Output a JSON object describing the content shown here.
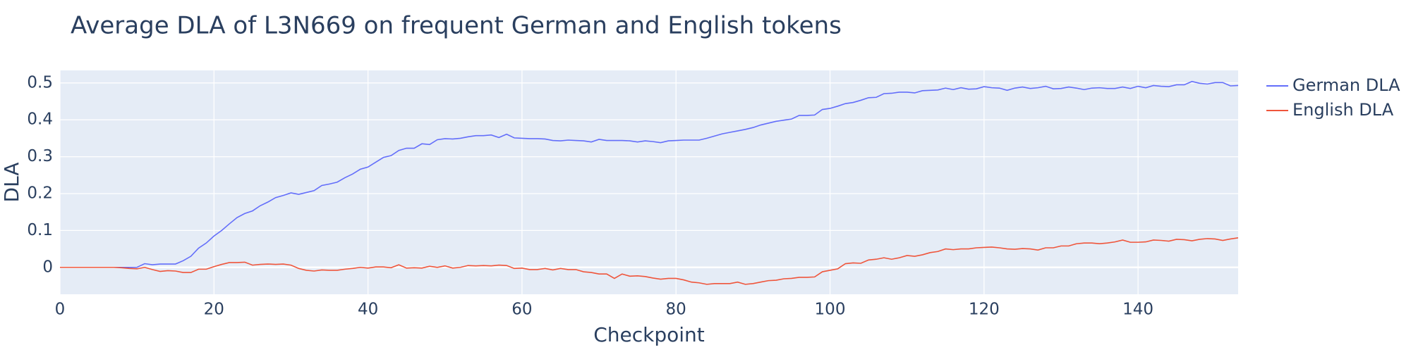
{
  "chart_data": {
    "type": "line",
    "title": "Average DLA of L3N669 on frequent German and English tokens",
    "x_label": "Checkpoint",
    "y_label": "DLA",
    "x": [
      0,
      1,
      2,
      3,
      4,
      5,
      6,
      7,
      8,
      9,
      10,
      11,
      12,
      13,
      14,
      15,
      16,
      17,
      18,
      19,
      20,
      21,
      22,
      23,
      24,
      25,
      26,
      27,
      28,
      29,
      30,
      31,
      32,
      33,
      34,
      35,
      36,
      37,
      38,
      39,
      40,
      41,
      42,
      43,
      44,
      45,
      46,
      47,
      48,
      49,
      50,
      51,
      52,
      53,
      54,
      55,
      56,
      57,
      58,
      59,
      60,
      61,
      62,
      63,
      64,
      65,
      66,
      67,
      68,
      69,
      70,
      71,
      72,
      73,
      74,
      75,
      76,
      77,
      78,
      79,
      80,
      81,
      82,
      83,
      84,
      85,
      86,
      87,
      88,
      89,
      90,
      91,
      92,
      93,
      94,
      95,
      96,
      97,
      98,
      99,
      100,
      101,
      102,
      103,
      104,
      105,
      106,
      107,
      108,
      109,
      110,
      111,
      112,
      113,
      114,
      115,
      116,
      117,
      118,
      119,
      120,
      121,
      122,
      123,
      124,
      125,
      126,
      127,
      128,
      129,
      130,
      131,
      132,
      133,
      134,
      135,
      136,
      137,
      138,
      139,
      140,
      141,
      142,
      143,
      144,
      145,
      146,
      147,
      148,
      149,
      150,
      151,
      152,
      153
    ],
    "series": [
      {
        "name": "German DLA",
        "color": "#636efa",
        "values": [
          0,
          0,
          0,
          0,
          0,
          0,
          0,
          0,
          0,
          0,
          0.0,
          0.01,
          0.007,
          0.009,
          0.009,
          0.009,
          0.018,
          0.03,
          0.052,
          0.066,
          0.085,
          0.1,
          0.118,
          0.135,
          0.146,
          0.153,
          0.167,
          0.177,
          0.189,
          0.195,
          0.202,
          0.198,
          0.203,
          0.208,
          0.222,
          0.226,
          0.231,
          0.243,
          0.253,
          0.266,
          0.272,
          0.285,
          0.298,
          0.303,
          0.317,
          0.323,
          0.323,
          0.335,
          0.333,
          0.346,
          0.349,
          0.348,
          0.35,
          0.354,
          0.357,
          0.357,
          0.359,
          0.352,
          0.361,
          0.351,
          0.35,
          0.349,
          0.349,
          0.348,
          0.344,
          0.343,
          0.345,
          0.344,
          0.343,
          0.34,
          0.347,
          0.344,
          0.344,
          0.344,
          0.343,
          0.34,
          0.343,
          0.341,
          0.338,
          0.343,
          0.344,
          0.345,
          0.345,
          0.345,
          0.35,
          0.356,
          0.362,
          0.366,
          0.37,
          0.374,
          0.379,
          0.386,
          0.391,
          0.396,
          0.399,
          0.402,
          0.412,
          0.412,
          0.413,
          0.428,
          0.431,
          0.437,
          0.444,
          0.447,
          0.453,
          0.46,
          0.461,
          0.471,
          0.472,
          0.475,
          0.475,
          0.473,
          0.479,
          0.48,
          0.481,
          0.486,
          0.482,
          0.487,
          0.483,
          0.484,
          0.49,
          0.487,
          0.486,
          0.48,
          0.486,
          0.489,
          0.485,
          0.487,
          0.491,
          0.484,
          0.485,
          0.489,
          0.486,
          0.482,
          0.486,
          0.487,
          0.485,
          0.485,
          0.489,
          0.485,
          0.491,
          0.487,
          0.493,
          0.491,
          0.49,
          0.495,
          0.495,
          0.504,
          0.499,
          0.497,
          0.501,
          0.501,
          0.492,
          0.493
        ]
      },
      {
        "name": "English DLA",
        "color": "#EF553B",
        "values": [
          0,
          0,
          0,
          0,
          0,
          0,
          0,
          0,
          -0.001,
          -0.003,
          -0.004,
          0.0,
          -0.006,
          -0.011,
          -0.009,
          -0.01,
          -0.014,
          -0.014,
          -0.005,
          -0.005,
          0.002,
          0.008,
          0.013,
          0.013,
          0.014,
          0.006,
          0.008,
          0.009,
          0.008,
          0.009,
          0.006,
          -0.003,
          -0.008,
          -0.01,
          -0.007,
          -0.008,
          -0.008,
          -0.005,
          -0.003,
          0.0,
          -0.002,
          0.001,
          0.001,
          -0.001,
          0.007,
          -0.002,
          -0.001,
          -0.002,
          0.003,
          0.0,
          0.004,
          -0.002,
          0.0,
          0.005,
          0.004,
          0.005,
          0.004,
          0.006,
          0.005,
          -0.003,
          -0.002,
          -0.006,
          -0.006,
          -0.003,
          -0.007,
          -0.003,
          -0.006,
          -0.006,
          -0.012,
          -0.014,
          -0.018,
          -0.018,
          -0.03,
          -0.018,
          -0.024,
          -0.023,
          -0.025,
          -0.029,
          -0.032,
          -0.03,
          -0.03,
          -0.034,
          -0.04,
          -0.042,
          -0.046,
          -0.044,
          -0.044,
          -0.044,
          -0.04,
          -0.046,
          -0.044,
          -0.04,
          -0.036,
          -0.035,
          -0.031,
          -0.03,
          -0.027,
          -0.027,
          -0.026,
          -0.012,
          -0.008,
          -0.004,
          0.01,
          0.012,
          0.011,
          0.02,
          0.022,
          0.026,
          0.022,
          0.026,
          0.032,
          0.03,
          0.034,
          0.04,
          0.043,
          0.05,
          0.048,
          0.05,
          0.05,
          0.053,
          0.054,
          0.055,
          0.053,
          0.05,
          0.049,
          0.051,
          0.05,
          0.047,
          0.053,
          0.053,
          0.058,
          0.058,
          0.064,
          0.066,
          0.066,
          0.064,
          0.066,
          0.069,
          0.074,
          0.068,
          0.068,
          0.069,
          0.074,
          0.073,
          0.071,
          0.076,
          0.075,
          0.072,
          0.076,
          0.078,
          0.077,
          0.073,
          0.077,
          0.08
        ]
      }
    ],
    "xlim": [
      0,
      153
    ],
    "xticks": [
      0,
      20,
      40,
      60,
      80,
      100,
      120,
      140
    ],
    "ylim": [
      -0.073,
      0.534
    ],
    "yticks": [
      0,
      0.1,
      0.2,
      0.3,
      0.4,
      0.5
    ],
    "grid": true,
    "legend": "right"
  }
}
